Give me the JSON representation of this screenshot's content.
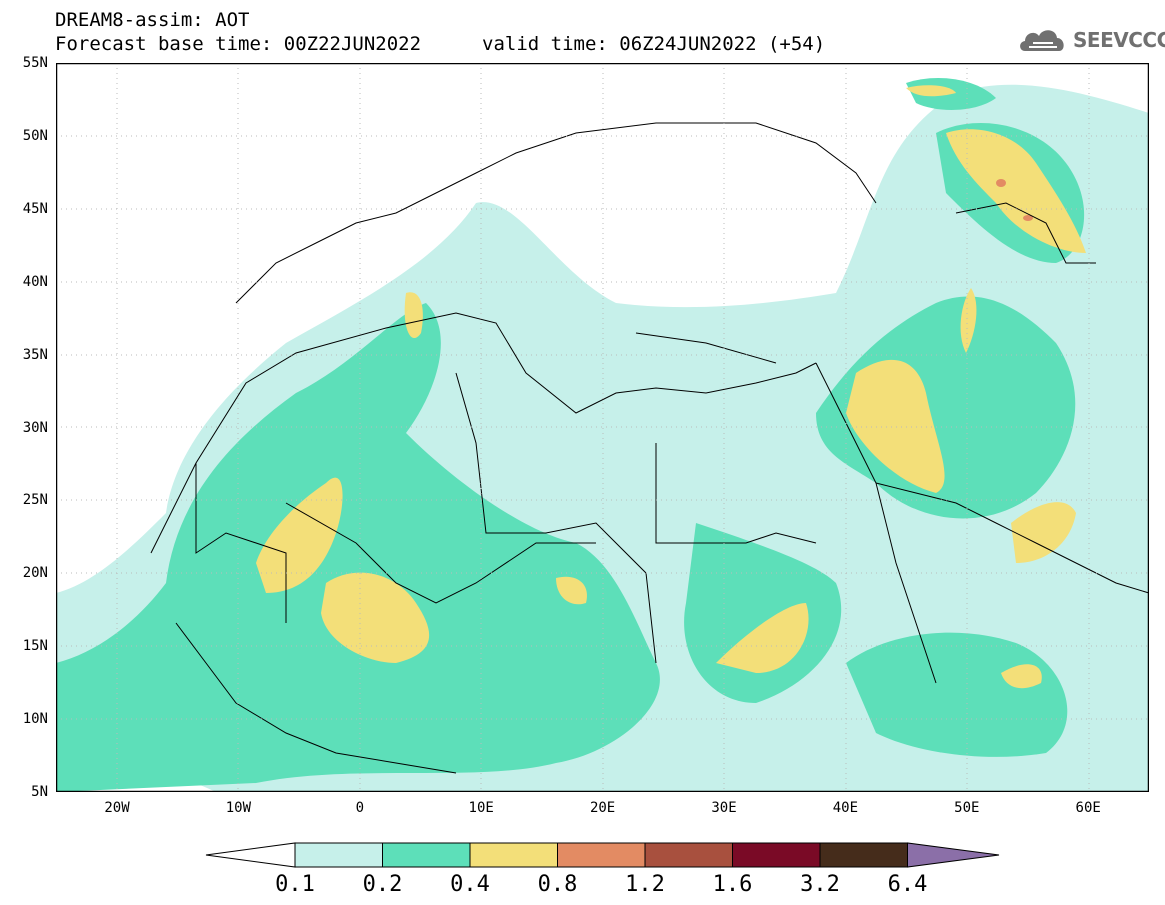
{
  "header": {
    "line1": "DREAM8-assim: AOT",
    "line2": "Forecast base time: 00Z22JUN2022",
    "valid": "valid time: 06Z24JUN2022 (+54)"
  },
  "logo": {
    "text": "SEEVCCC",
    "icon": "cloud-icon"
  },
  "axes": {
    "y_labels": [
      "55N",
      "50N",
      "45N",
      "40N",
      "35N",
      "30N",
      "25N",
      "20N",
      "15N",
      "10N",
      "5N"
    ],
    "x_labels": [
      "20W",
      "10W",
      "0",
      "10E",
      "20E",
      "30E",
      "40E",
      "50E",
      "60E"
    ]
  },
  "colorbar": {
    "labels": [
      "0.1",
      "0.2",
      "0.4",
      "0.8",
      "1.2",
      "1.6",
      "3.2",
      "6.4"
    ],
    "colors": [
      "#ffffff",
      "#c6f0ea",
      "#5ddfb9",
      "#f3df79",
      "#e38b63",
      "#a8503e",
      "#7a0a26",
      "#452c1b",
      "#8b6fa8"
    ]
  },
  "legend_colors": {
    "very_low": "#c6f0ea",
    "low": "#5ddfb9",
    "moderate": "#f3df79",
    "high": "#e38b63"
  }
}
